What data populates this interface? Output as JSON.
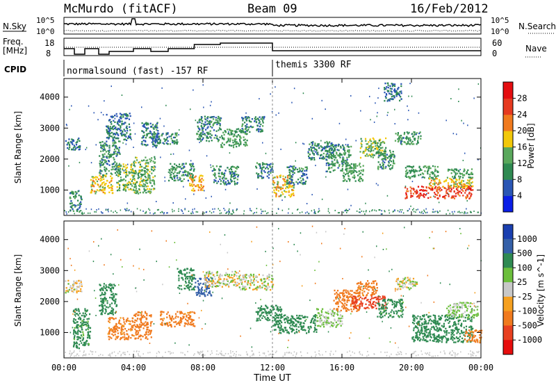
{
  "header": {
    "station": "McMurdo (fitACF)",
    "beam": "Beam 09",
    "date": "16/Feb/2012"
  },
  "status_panels": {
    "nsky_label": "N.Sky",
    "nsearch_label": "N.Search",
    "freq_label_line1": "Freq.",
    "freq_label_line2": "[MHz]",
    "nave_label": "Nave",
    "cpid_label": "CPID",
    "noise_ticks_left": [
      "10^5",
      "10^0"
    ],
    "noise_ticks_right": [
      "10^5",
      "10^0"
    ],
    "freq_ticks": [
      "18",
      "8"
    ],
    "nave_ticks": [
      "60",
      "0"
    ],
    "cpid_segments": [
      {
        "label": "normalsound (fast) -157 RF",
        "start_hour": 0,
        "end_hour": 12
      },
      {
        "label": "themis 3300 RF",
        "start_hour": 12,
        "end_hour": 24
      }
    ]
  },
  "time_axis": {
    "label": "Time UT",
    "tick_labels": [
      "00:00",
      "04:00",
      "08:00",
      "12:00",
      "16:00",
      "20:00",
      "00:00"
    ]
  },
  "chart_data": [
    {
      "type": "heatmap",
      "title": "",
      "xlabel": "Time UT",
      "ylabel": "Slant Range [km]",
      "xlim_hours": [
        0,
        24
      ],
      "ylim_km": [
        180,
        4600
      ],
      "yticks": [
        1000,
        2000,
        3000,
        4000
      ],
      "colorbar": {
        "label": "Power [dB]",
        "ticks": [
          4,
          8,
          12,
          16,
          20,
          24,
          28
        ],
        "colors": [
          "#0a1ee6",
          "#2a56b4",
          "#2f8a52",
          "#5aa85c",
          "#f2c80a",
          "#f07a1e",
          "#e63a20",
          "#e40d10"
        ]
      },
      "echo_regions": [
        {
          "t0": 0.05,
          "t1": 0.9,
          "r0": 2300,
          "r1": 2700,
          "level": 8
        },
        {
          "t0": 0.3,
          "t1": 1.0,
          "r0": 300,
          "r1": 1000,
          "level": 10
        },
        {
          "t0": 1.5,
          "t1": 2.8,
          "r0": 900,
          "r1": 1500,
          "level": 18
        },
        {
          "t0": 2.0,
          "t1": 3.2,
          "r0": 1500,
          "r1": 2600,
          "level": 10
        },
        {
          "t0": 2.4,
          "t1": 3.8,
          "r0": 2600,
          "r1": 3500,
          "level": 8
        },
        {
          "t0": 3.0,
          "t1": 4.0,
          "r0": 1000,
          "r1": 1900,
          "level": 14
        },
        {
          "t0": 4.0,
          "t1": 5.2,
          "r0": 900,
          "r1": 2100,
          "level": 13
        },
        {
          "t0": 4.4,
          "t1": 5.4,
          "r0": 2400,
          "r1": 3200,
          "level": 9
        },
        {
          "t0": 5.0,
          "t1": 6.5,
          "r0": 2500,
          "r1": 2900,
          "level": 10
        },
        {
          "t0": 6.0,
          "t1": 7.5,
          "r0": 1300,
          "r1": 1900,
          "level": 11
        },
        {
          "t0": 7.2,
          "t1": 8.0,
          "r0": 1000,
          "r1": 1500,
          "level": 20
        },
        {
          "t0": 7.6,
          "t1": 9.0,
          "r0": 2600,
          "r1": 3400,
          "level": 10
        },
        {
          "t0": 8.5,
          "t1": 10.0,
          "r0": 1200,
          "r1": 1800,
          "level": 10
        },
        {
          "t0": 9.0,
          "t1": 10.5,
          "r0": 2400,
          "r1": 3000,
          "level": 12
        },
        {
          "t0": 10.2,
          "t1": 11.5,
          "r0": 2900,
          "r1": 3400,
          "level": 9
        },
        {
          "t0": 11.0,
          "t1": 12.0,
          "r0": 1400,
          "r1": 1900,
          "level": 9
        },
        {
          "t0": 12.0,
          "t1": 13.2,
          "r0": 800,
          "r1": 1500,
          "level": 18
        },
        {
          "t0": 12.8,
          "t1": 14.0,
          "r0": 1200,
          "r1": 1800,
          "level": 10
        },
        {
          "t0": 14.0,
          "t1": 15.4,
          "r0": 2000,
          "r1": 2600,
          "level": 9
        },
        {
          "t0": 15.0,
          "t1": 16.5,
          "r0": 1600,
          "r1": 2500,
          "level": 11
        },
        {
          "t0": 16.0,
          "t1": 17.2,
          "r0": 1300,
          "r1": 1900,
          "level": 12
        },
        {
          "t0": 17.0,
          "t1": 18.5,
          "r0": 2000,
          "r1": 2700,
          "level": 14
        },
        {
          "t0": 18.0,
          "t1": 19.0,
          "r0": 1700,
          "r1": 2300,
          "level": 10
        },
        {
          "t0": 18.4,
          "t1": 19.4,
          "r0": 3900,
          "r1": 4500,
          "level": 8
        },
        {
          "t0": 19.0,
          "t1": 20.5,
          "r0": 2500,
          "r1": 2900,
          "level": 11
        },
        {
          "t0": 19.6,
          "t1": 21.5,
          "r0": 1400,
          "r1": 1800,
          "level": 12
        },
        {
          "t0": 19.6,
          "t1": 23.5,
          "r0": 750,
          "r1": 1150,
          "level": 26
        },
        {
          "t0": 21.0,
          "t1": 23.5,
          "r0": 1100,
          "r1": 1400,
          "level": 18
        },
        {
          "t0": 22.0,
          "t1": 23.5,
          "r0": 1400,
          "r1": 1700,
          "level": 12
        }
      ]
    },
    {
      "type": "heatmap",
      "title": "",
      "xlabel": "Time UT",
      "ylabel": "Slant Range [km]",
      "xlim_hours": [
        0,
        24
      ],
      "ylim_km": [
        180,
        4600
      ],
      "yticks": [
        1000,
        2000,
        3000,
        4000
      ],
      "colorbar": {
        "label": "Velocity [m s^-1]",
        "ticks": [
          1000,
          500,
          100,
          25,
          -25,
          -100,
          -500,
          -1000
        ],
        "colors": [
          "#1a3fb0",
          "#3560a8",
          "#2f8a52",
          "#6cbf3c",
          "#c8c8c8",
          "#f5a020",
          "#f07a1e",
          "#e84020",
          "#e60d0d"
        ]
      },
      "echo_regions": [
        {
          "t0": 0.0,
          "t1": 1.0,
          "r0": 2300,
          "r1": 2700,
          "vel": -20
        },
        {
          "t0": 0.5,
          "t1": 1.5,
          "r0": 500,
          "r1": 1800,
          "vel": 150
        },
        {
          "t0": 2.0,
          "t1": 3.0,
          "r0": 1600,
          "r1": 2600,
          "vel": 200
        },
        {
          "t0": 2.5,
          "t1": 4.0,
          "r0": 800,
          "r1": 1500,
          "vel": -150
        },
        {
          "t0": 4.0,
          "t1": 5.0,
          "r0": 800,
          "r1": 1700,
          "vel": -200
        },
        {
          "t0": 5.5,
          "t1": 7.5,
          "r0": 1200,
          "r1": 1700,
          "vel": -150
        },
        {
          "t0": 6.5,
          "t1": 7.5,
          "r0": 2400,
          "r1": 3100,
          "vel": 200
        },
        {
          "t0": 7.5,
          "t1": 8.5,
          "r0": 2200,
          "r1": 2800,
          "vel": 600
        },
        {
          "t0": 8.0,
          "t1": 10.0,
          "r0": 2500,
          "r1": 3000,
          "vel": 0
        },
        {
          "t0": 10.0,
          "t1": 12.0,
          "r0": 2400,
          "r1": 2900,
          "vel": 0
        },
        {
          "t0": 11.0,
          "t1": 12.5,
          "r0": 1400,
          "r1": 1900,
          "vel": 200
        },
        {
          "t0": 12.0,
          "t1": 14.5,
          "r0": 1000,
          "r1": 1600,
          "vel": 200
        },
        {
          "t0": 14.5,
          "t1": 16.0,
          "r0": 1200,
          "r1": 1800,
          "vel": 40
        },
        {
          "t0": 15.5,
          "t1": 17.0,
          "r0": 1700,
          "r1": 2400,
          "vel": -300
        },
        {
          "t0": 16.5,
          "t1": 18.5,
          "r0": 1800,
          "r1": 2200,
          "vel": -600
        },
        {
          "t0": 16.8,
          "t1": 18.0,
          "r0": 2200,
          "r1": 2700,
          "vel": -150
        },
        {
          "t0": 18.0,
          "t1": 19.5,
          "r0": 1500,
          "r1": 2100,
          "vel": 150
        },
        {
          "t0": 19.0,
          "t1": 20.3,
          "r0": 2400,
          "r1": 2800,
          "vel": 0
        },
        {
          "t0": 20.0,
          "t1": 23.5,
          "r0": 700,
          "r1": 1600,
          "vel": 200
        },
        {
          "t0": 22.0,
          "t1": 23.8,
          "r0": 1500,
          "r1": 2000,
          "vel": 40
        },
        {
          "t0": 23.0,
          "t1": 24.0,
          "r0": 700,
          "r1": 1100,
          "vel": -150
        }
      ]
    }
  ]
}
